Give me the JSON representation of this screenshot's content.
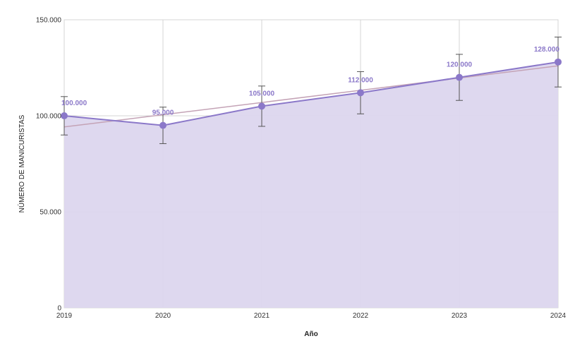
{
  "chart_data": {
    "type": "line",
    "xlabel": "Año",
    "ylabel": "NÚMERO DE MANICURISTAS",
    "categories": [
      "2019",
      "2020",
      "2021",
      "2022",
      "2023",
      "2024"
    ],
    "series": [
      {
        "values": [
          100000,
          95000,
          105000,
          112000,
          120000,
          128000
        ],
        "data_labels": [
          "100.000",
          "95.000",
          "105.000",
          "112.000",
          "120.000",
          "128.000"
        ],
        "error_bars": [
          [
            90000,
            110000
          ],
          [
            85500,
            104500
          ],
          [
            94500,
            115500
          ],
          [
            101000,
            123000
          ],
          [
            108000,
            132000
          ],
          [
            115000,
            141000
          ]
        ]
      }
    ],
    "trendline": [
      94200,
      126000
    ],
    "ylim": [
      0,
      150000
    ],
    "yticks": [
      0,
      50000,
      100000,
      150000
    ],
    "ytick_labels": [
      "0",
      "50.000",
      "100.000",
      "150.000"
    ],
    "grid": true,
    "area_fill": true,
    "colors": {
      "line": "#8b78c9",
      "area": "#dcd6ee",
      "trend": "#c4a3b6",
      "label": "#8b78c9",
      "grid": "#d4d4d4",
      "error": "#555555"
    }
  }
}
